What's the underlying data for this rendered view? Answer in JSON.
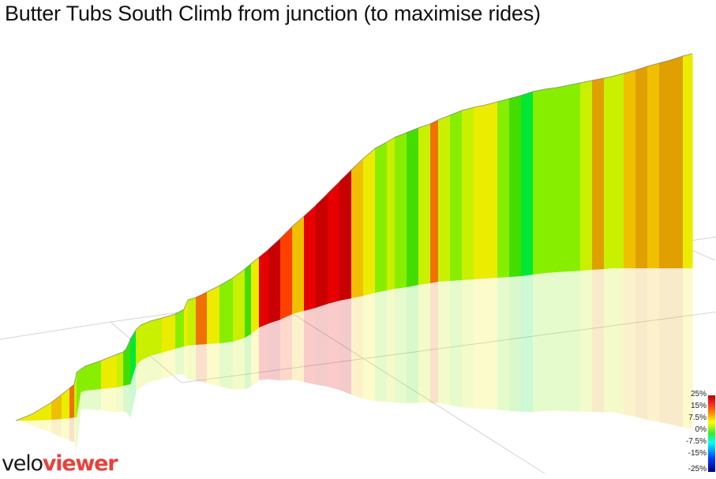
{
  "title": "Butter Tubs South Climb from junction (to maximise rides)",
  "logo": {
    "part1": "velo",
    "part2": "viewer",
    "accent": "#e8413b"
  },
  "legend": {
    "ticks": [
      "25%",
      "15%",
      "7.5%",
      "0%",
      "-7.5%",
      "-15%",
      "-25%"
    ]
  },
  "palette": {
    "deep_red": "#c80000",
    "red": "#e60000",
    "orange_red": "#ff4000",
    "orange": "#f07000",
    "amber": "#e0a000",
    "yellow_orange": "#f0c000",
    "yellow": "#ecec00",
    "yellow_green": "#c8f000",
    "light_green": "#88ee00",
    "green": "#44dd00",
    "bright_green": "#00e834"
  }
}
